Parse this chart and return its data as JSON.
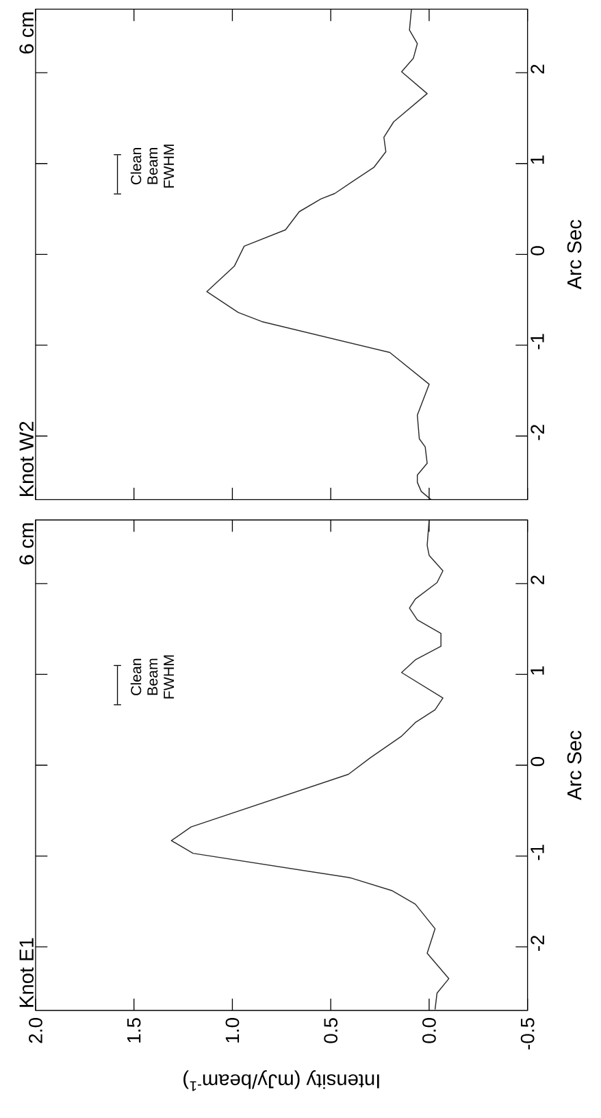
{
  "chart_data": [
    {
      "type": "line",
      "title": "Knot E1",
      "subtitle": "6 cm",
      "xlabel": "Intensity (mJy/beam$^{-1}$)",
      "ylabel": "Arc Sec",
      "annotations": [
        "Clean Beam FWHM"
      ],
      "color": "#2a2a2a",
      "values": [
        -2.69,
        -2.51,
        -2.35,
        -2.07,
        -1.8,
        -1.53,
        -1.38,
        -1.24,
        -0.97,
        -0.83,
        -0.68,
        -0.1,
        0.08,
        0.32,
        0.47,
        0.61,
        0.74,
        1.02,
        1.16,
        1.31,
        1.45,
        1.6,
        1.73,
        1.83,
        2.01,
        2.14,
        2.31,
        2.42,
        2.7
      ],
      "x": [
        -0.03,
        -0.04,
        -0.1,
        0.01,
        -0.03,
        0.07,
        0.19,
        0.4,
        1.2,
        1.31,
        1.21,
        0.41,
        0.3,
        0.14,
        0.07,
        -0.03,
        -0.07,
        0.14,
        0.07,
        -0.06,
        -0.06,
        0.06,
        0.1,
        0.07,
        -0.04,
        -0.07,
        0.0,
        0.01,
        0.0
      ],
      "xlim": [
        2.0,
        -0.5
      ],
      "ylim": [
        -2.7,
        2.7
      ],
      "xticks": [
        {
          "value": 2,
          "label": "2.0"
        },
        {
          "value": 1.5,
          "label": "1.5"
        },
        {
          "value": 1,
          "label": "1.0"
        },
        {
          "value": 0.5,
          "label": "0.5"
        },
        {
          "value": 0,
          "label": "0.0"
        },
        {
          "value": -0.5,
          "label": "-0.5"
        }
      ],
      "yticks": [
        {
          "value": -2,
          "label": "-2"
        },
        {
          "value": -1,
          "label": "-1"
        },
        {
          "value": 0,
          "label": "0"
        },
        {
          "value": 1,
          "label": "1"
        },
        {
          "value": 2,
          "label": "2"
        }
      ]
    },
    {
      "type": "line",
      "title": "Knot W2",
      "subtitle": "6 cm",
      "ylabel": "Arc Sec",
      "annotations": [
        "Clean Beam FWHM"
      ],
      "color": "#2a2a2a",
      "values": [
        -2.7,
        -2.61,
        -2.51,
        -2.43,
        -2.3,
        -2.12,
        -2.03,
        -1.77,
        -1.43,
        -1.08,
        -0.74,
        -0.64,
        -0.41,
        -0.13,
        0.09,
        0.27,
        0.47,
        0.61,
        0.67,
        0.96,
        1.13,
        1.29,
        1.46,
        1.77,
        2.01,
        2.16,
        2.32,
        2.47,
        2.7
      ],
      "x": [
        -0.01,
        0.04,
        0.06,
        0.06,
        0.01,
        0.02,
        0.05,
        0.06,
        0.0,
        0.2,
        0.85,
        0.97,
        1.13,
        0.99,
        0.94,
        0.73,
        0.66,
        0.55,
        0.48,
        0.28,
        0.22,
        0.23,
        0.18,
        0.01,
        0.14,
        0.08,
        0.06,
        0.1,
        0.09
      ],
      "xlim": [
        2.0,
        -0.5
      ],
      "ylim": [
        -2.7,
        2.7
      ],
      "xticks": [
        {
          "value": 2,
          "label": null
        },
        {
          "value": 1.5,
          "label": null
        },
        {
          "value": 1,
          "label": null
        },
        {
          "value": 0.5,
          "label": null
        },
        {
          "value": 0,
          "label": null
        },
        {
          "value": -0.5,
          "label": null
        }
      ],
      "yticks": [
        {
          "value": -2,
          "label": "-2"
        },
        {
          "value": -1,
          "label": "-1"
        },
        {
          "value": 0,
          "label": "0"
        },
        {
          "value": 1,
          "label": "1"
        },
        {
          "value": 2,
          "label": "2"
        }
      ],
      "tick_labels": "y"
    }
  ]
}
